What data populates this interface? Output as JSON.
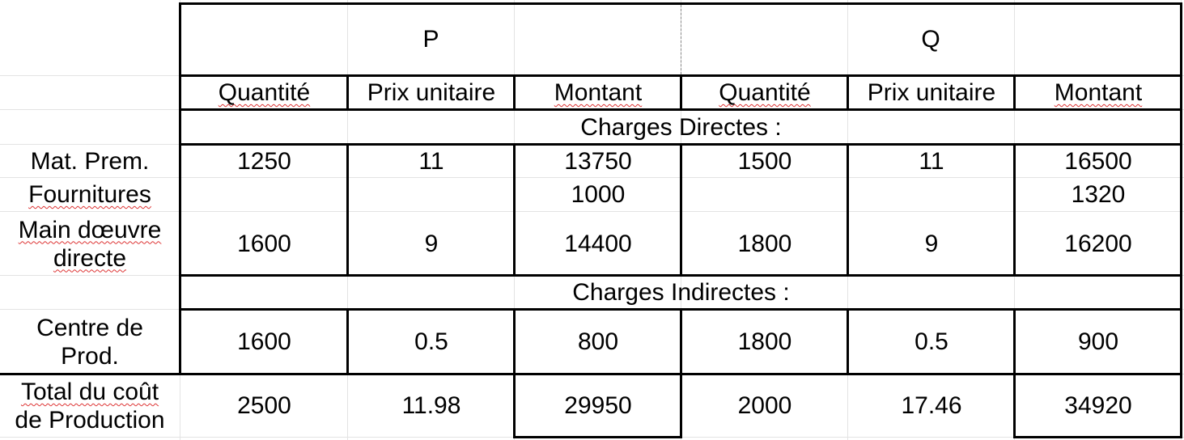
{
  "table": {
    "groups": [
      "P",
      "Q"
    ],
    "columns": [
      "Quantité",
      "Prix unitaire",
      "Montant",
      "Quantité",
      "Prix unitaire",
      "Montant"
    ],
    "sections": {
      "direct": "Charges Directes :",
      "indirect": "Charges Indirectes :"
    },
    "rows": {
      "mat": {
        "label": "Mat. Prem.",
        "values": [
          "1250",
          "11",
          "13750",
          "1500",
          "11",
          "16500"
        ]
      },
      "fourn": {
        "label": "Fournitures",
        "values": [
          "",
          "",
          "1000",
          "",
          "",
          "1320"
        ]
      },
      "mod": {
        "label_line1": "Main dœuvre",
        "label_line2": "directe",
        "values": [
          "1600",
          "9",
          "14400",
          "1800",
          "9",
          "16200"
        ]
      },
      "centre": {
        "label_line1": "Centre de",
        "label_line2": "Prod.",
        "values": [
          "1600",
          "0.5",
          "800",
          "1800",
          "0.5",
          "900"
        ]
      },
      "total": {
        "label_line1": "Total du coût",
        "label_line2": "de Production",
        "values": [
          "2500",
          "11.98",
          "29950",
          "2000",
          "17.46",
          "34920"
        ]
      }
    }
  }
}
